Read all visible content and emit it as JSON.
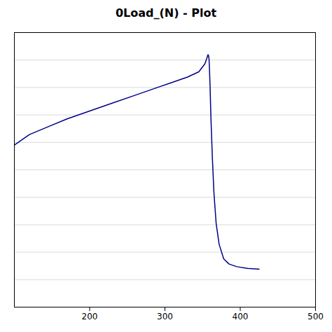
{
  "chart_data": {
    "type": "line",
    "title": "0Load_(N) - Plot",
    "x": [
      100,
      120,
      145,
      170,
      200,
      230,
      260,
      290,
      310,
      330,
      345,
      353,
      356,
      357,
      357.5,
      358,
      358.5,
      359,
      360,
      361,
      363,
      365,
      368,
      372,
      378,
      385,
      395,
      410,
      425
    ],
    "values": [
      0.62,
      0.66,
      0.69,
      0.72,
      0.75,
      0.78,
      0.81,
      0.84,
      0.86,
      0.88,
      0.9,
      0.93,
      0.955,
      0.965,
      0.965,
      0.96,
      0.95,
      0.92,
      0.84,
      0.73,
      0.57,
      0.44,
      0.32,
      0.24,
      0.185,
      0.165,
      0.155,
      0.148,
      0.145
    ],
    "color": "#00008B",
    "xlim": [
      100,
      500
    ],
    "xticks": [
      200,
      300,
      400,
      500
    ],
    "ylim": [
      0,
      1.05
    ],
    "yticks": [
      0,
      0.105,
      0.21,
      0.315,
      0.42,
      0.525,
      0.63,
      0.735,
      0.84,
      0.945,
      1.05
    ],
    "grid": true,
    "tick_labels": "x"
  }
}
